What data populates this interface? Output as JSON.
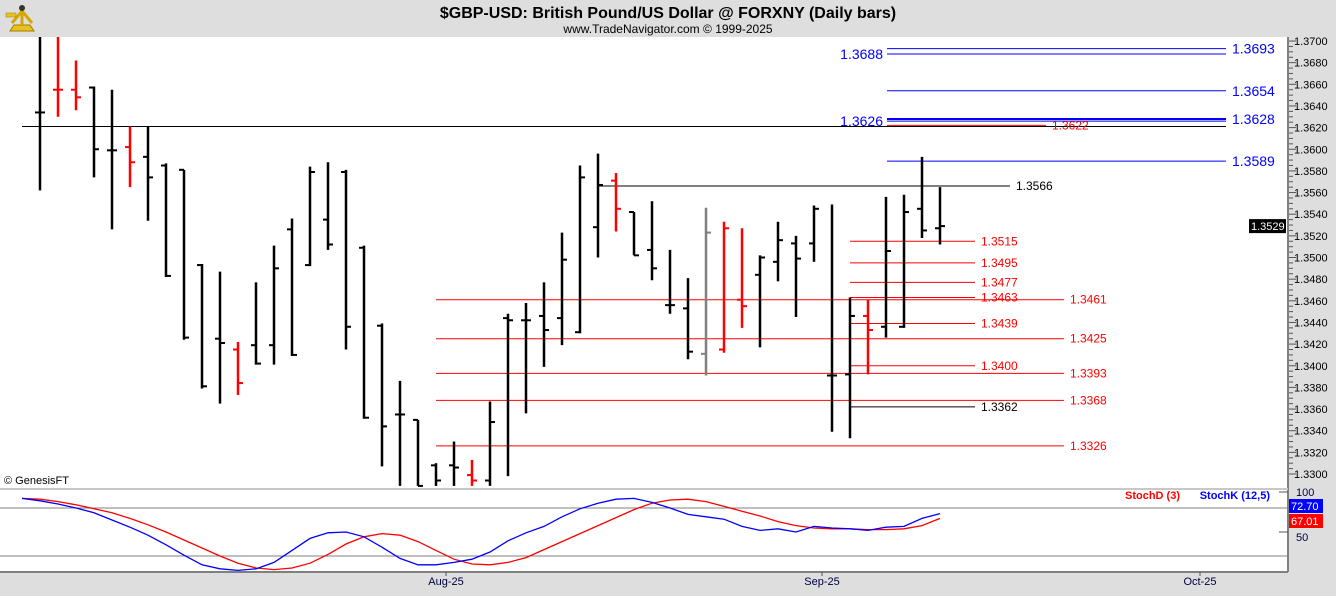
{
  "header": {
    "title": "$GBP-USD:  British Pound/US Dollar @ FORXNY  (Daily bars)",
    "subtitle": "www.TradeNavigator.com © 1999-2025",
    "logo_icon": "sextant-icon"
  },
  "watermark": "© GenesisFT",
  "colors": {
    "up_bar": "#000000",
    "down_bar": "#ff0000",
    "neutral_bar": "#808080",
    "blue_level": "#0000ff",
    "red_level": "#ff0000",
    "black_level": "#000000",
    "stochK": "#0000ff",
    "stochD": "#ff0000"
  },
  "chart_data": [
    {
      "type": "ohlc",
      "title": "$GBP-USD:  British Pound/US Dollar @ FORXNY  (Daily bars)",
      "ylim": [
        1.3285,
        1.3705
      ],
      "y_tick_labels": [
        "1.3300",
        "1.3320",
        "1.3340",
        "1.3360",
        "1.3380",
        "1.3400",
        "1.3420",
        "1.3440",
        "1.3460",
        "1.3480",
        "1.3500",
        "1.3520",
        "1.3540",
        "1.3560",
        "1.3580",
        "1.3600",
        "1.3620",
        "1.3640",
        "1.3660",
        "1.3680",
        "1.3700"
      ],
      "x_tick_labels": [
        "Aug-25",
        "Sep-25",
        "Oct-25"
      ],
      "last_price": "1.3529",
      "bars": [
        {
          "o": 1.3634,
          "h": 1.3704,
          "l": 1.3562,
          "c": 1.3634,
          "color": "black"
        },
        {
          "o": 1.3655,
          "h": 1.3704,
          "l": 1.363,
          "c": 1.3655,
          "color": "red"
        },
        {
          "o": 1.3655,
          "h": 1.3682,
          "l": 1.3636,
          "c": 1.3648,
          "color": "red"
        },
        {
          "o": 1.3657,
          "h": 1.3658,
          "l": 1.3574,
          "c": 1.36,
          "color": "black"
        },
        {
          "o": 1.3599,
          "h": 1.3655,
          "l": 1.3526,
          "c": 1.3599,
          "color": "black"
        },
        {
          "o": 1.3602,
          "h": 1.3621,
          "l": 1.3565,
          "c": 1.3588,
          "color": "red"
        },
        {
          "o": 1.3593,
          "h": 1.3621,
          "l": 1.3534,
          "c": 1.3574,
          "color": "black"
        },
        {
          "o": 1.3585,
          "h": 1.3587,
          "l": 1.3482,
          "c": 1.3483,
          "color": "black"
        },
        {
          "o": 1.3581,
          "h": 1.3581,
          "l": 1.3424,
          "c": 1.3426,
          "color": "black"
        },
        {
          "o": 1.3493,
          "h": 1.3494,
          "l": 1.3379,
          "c": 1.3381,
          "color": "black"
        },
        {
          "o": 1.3425,
          "h": 1.3487,
          "l": 1.3365,
          "c": 1.3421,
          "color": "black"
        },
        {
          "o": 1.3415,
          "h": 1.3422,
          "l": 1.3373,
          "c": 1.3384,
          "color": "red"
        },
        {
          "o": 1.3419,
          "h": 1.3477,
          "l": 1.3401,
          "c": 1.3402,
          "color": "black"
        },
        {
          "o": 1.3419,
          "h": 1.3511,
          "l": 1.3401,
          "c": 1.349,
          "color": "black"
        },
        {
          "o": 1.3526,
          "h": 1.3536,
          "l": 1.3409,
          "c": 1.341,
          "color": "black"
        },
        {
          "o": 1.3493,
          "h": 1.3584,
          "l": 1.3492,
          "c": 1.3579,
          "color": "black"
        },
        {
          "o": 1.3535,
          "h": 1.3588,
          "l": 1.3507,
          "c": 1.3512,
          "color": "black"
        },
        {
          "o": 1.3579,
          "h": 1.3581,
          "l": 1.3415,
          "c": 1.3436,
          "color": "black"
        },
        {
          "o": 1.3509,
          "h": 1.3511,
          "l": 1.3351,
          "c": 1.3352,
          "color": "black"
        },
        {
          "o": 1.3437,
          "h": 1.3439,
          "l": 1.3307,
          "c": 1.3344,
          "color": "black"
        },
        {
          "o": 1.3355,
          "h": 1.3386,
          "l": 1.3289,
          "c": 1.3355,
          "color": "black"
        },
        {
          "o": 1.335,
          "h": 1.335,
          "l": 1.3289,
          "c": 1.3289,
          "color": "black"
        },
        {
          "o": 1.3308,
          "h": 1.331,
          "l": 1.3289,
          "c": 1.3294,
          "color": "black"
        },
        {
          "o": 1.3308,
          "h": 1.333,
          "l": 1.3289,
          "c": 1.3306,
          "color": "black"
        },
        {
          "o": 1.3299,
          "h": 1.3313,
          "l": 1.3289,
          "c": 1.3294,
          "color": "red"
        },
        {
          "o": 1.3294,
          "h": 1.3367,
          "l": 1.3289,
          "c": 1.3348,
          "color": "black"
        },
        {
          "o": 1.3444,
          "h": 1.3448,
          "l": 1.3298,
          "c": 1.3442,
          "color": "black"
        },
        {
          "o": 1.3442,
          "h": 1.3458,
          "l": 1.3356,
          "c": 1.3442,
          "color": "black"
        },
        {
          "o": 1.3446,
          "h": 1.3477,
          "l": 1.3399,
          "c": 1.3433,
          "color": "black"
        },
        {
          "o": 1.3444,
          "h": 1.3523,
          "l": 1.3419,
          "c": 1.3498,
          "color": "black"
        },
        {
          "o": 1.3431,
          "h": 1.3585,
          "l": 1.343,
          "c": 1.3574,
          "color": "black"
        },
        {
          "o": 1.3528,
          "h": 1.3596,
          "l": 1.35,
          "c": 1.3567,
          "color": "black"
        },
        {
          "o": 1.3571,
          "h": 1.3578,
          "l": 1.3524,
          "c": 1.3545,
          "color": "red"
        },
        {
          "o": 1.3542,
          "h": 1.3542,
          "l": 1.3502,
          "c": 1.3502,
          "color": "black"
        },
        {
          "o": 1.3507,
          "h": 1.3552,
          "l": 1.3479,
          "c": 1.349,
          "color": "black"
        },
        {
          "o": 1.3456,
          "h": 1.3507,
          "l": 1.3448,
          "c": 1.3456,
          "color": "black"
        },
        {
          "o": 1.3453,
          "h": 1.3481,
          "l": 1.3406,
          "c": 1.3413,
          "color": "black"
        },
        {
          "o": 1.3411,
          "h": 1.3546,
          "l": 1.3391,
          "c": 1.3523,
          "color": "gray"
        },
        {
          "o": 1.3415,
          "h": 1.3533,
          "l": 1.3412,
          "c": 1.3527,
          "color": "red"
        },
        {
          "o": 1.3461,
          "h": 1.3527,
          "l": 1.3435,
          "c": 1.3455,
          "color": "red"
        },
        {
          "o": 1.3484,
          "h": 1.3502,
          "l": 1.3417,
          "c": 1.35,
          "color": "black"
        },
        {
          "o": 1.3496,
          "h": 1.3533,
          "l": 1.3478,
          "c": 1.3516,
          "color": "black"
        },
        {
          "o": 1.3513,
          "h": 1.352,
          "l": 1.3445,
          "c": 1.3499,
          "color": "black"
        },
        {
          "o": 1.3513,
          "h": 1.3548,
          "l": 1.3496,
          "c": 1.3545,
          "color": "black"
        },
        {
          "o": 1.3391,
          "h": 1.3549,
          "l": 1.3339,
          "c": 1.3391,
          "color": "black"
        },
        {
          "o": 1.3392,
          "h": 1.3463,
          "l": 1.3333,
          "c": 1.3446,
          "color": "black"
        },
        {
          "o": 1.3446,
          "h": 1.3461,
          "l": 1.3392,
          "c": 1.3433,
          "color": "red"
        },
        {
          "o": 1.3436,
          "h": 1.3556,
          "l": 1.3426,
          "c": 1.3506,
          "color": "black"
        },
        {
          "o": 1.3436,
          "h": 1.3558,
          "l": 1.3435,
          "c": 1.3542,
          "color": "black"
        },
        {
          "o": 1.3545,
          "h": 1.3593,
          "l": 1.3518,
          "c": 1.3525,
          "color": "black"
        },
        {
          "o": 1.3527,
          "h": 1.3565,
          "l": 1.3512,
          "c": 1.3529,
          "color": "black"
        }
      ],
      "levels": [
        {
          "price": 1.3693,
          "label": "1.3693",
          "color": "blue"
        },
        {
          "price": 1.3688,
          "label": "1.3688",
          "color": "blue"
        },
        {
          "price": 1.3654,
          "label": "1.3654",
          "color": "blue"
        },
        {
          "price": 1.3628,
          "label": "1.3628",
          "color": "blue"
        },
        {
          "price": 1.3626,
          "label": "1.3626",
          "color": "blue"
        },
        {
          "price": 1.3621,
          "label": "",
          "color": "black"
        },
        {
          "price": 1.3622,
          "label": "1.3622",
          "color": "red"
        },
        {
          "price": 1.3589,
          "label": "1.3589",
          "color": "blue"
        },
        {
          "price": 1.3566,
          "label": "1.3566",
          "color": "black"
        },
        {
          "price": 1.3515,
          "label": "1.3515",
          "color": "red"
        },
        {
          "price": 1.3495,
          "label": "1.3495",
          "color": "red"
        },
        {
          "price": 1.3477,
          "label": "1.3477",
          "color": "red"
        },
        {
          "price": 1.3463,
          "label": "1.3463",
          "color": "red"
        },
        {
          "price": 1.3461,
          "label": "1.3461",
          "color": "red"
        },
        {
          "price": 1.3439,
          "label": "1.3439",
          "color": "red"
        },
        {
          "price": 1.3425,
          "label": "1.3425",
          "color": "red"
        },
        {
          "price": 1.34,
          "label": "1.3400",
          "color": "red"
        },
        {
          "price": 1.3393,
          "label": "1.3393",
          "color": "red"
        },
        {
          "price": 1.3368,
          "label": "1.3368",
          "color": "red"
        },
        {
          "price": 1.3362,
          "label": "1.3362",
          "color": "black"
        },
        {
          "price": 1.3326,
          "label": "1.3326",
          "color": "red"
        }
      ]
    },
    {
      "type": "line",
      "ylim": [
        0,
        100
      ],
      "y_tick_labels": [
        "100",
        "50"
      ],
      "reference_lines": [
        80,
        20
      ],
      "series": [
        {
          "name": "StochK (12,5)",
          "color": "blue",
          "last_label": "72.70",
          "values": [
            92,
            89,
            85,
            80,
            74,
            65,
            56,
            46,
            34,
            21,
            9,
            4,
            2,
            4,
            12,
            27,
            42,
            49,
            50,
            44,
            31,
            17,
            9,
            9,
            12,
            16,
            25,
            39,
            49,
            57,
            69,
            79,
            86,
            91,
            92,
            87,
            80,
            72,
            69,
            66,
            57,
            52,
            54,
            50,
            57,
            55,
            54,
            52,
            56,
            57,
            67,
            73
          ]
        },
        {
          "name": "StochD (3)",
          "color": "red",
          "last_label": "67.01",
          "values": [
            92,
            91,
            88,
            84,
            79,
            74,
            67,
            59,
            50,
            40,
            30,
            20,
            11,
            5,
            3,
            5,
            11,
            22,
            35,
            44,
            48,
            46,
            38,
            27,
            16,
            10,
            9,
            12,
            18,
            28,
            38,
            48,
            58,
            68,
            78,
            86,
            90,
            91,
            88,
            82,
            76,
            70,
            63,
            58,
            55,
            54,
            54,
            53,
            53,
            54,
            58,
            67
          ]
        }
      ]
    }
  ]
}
